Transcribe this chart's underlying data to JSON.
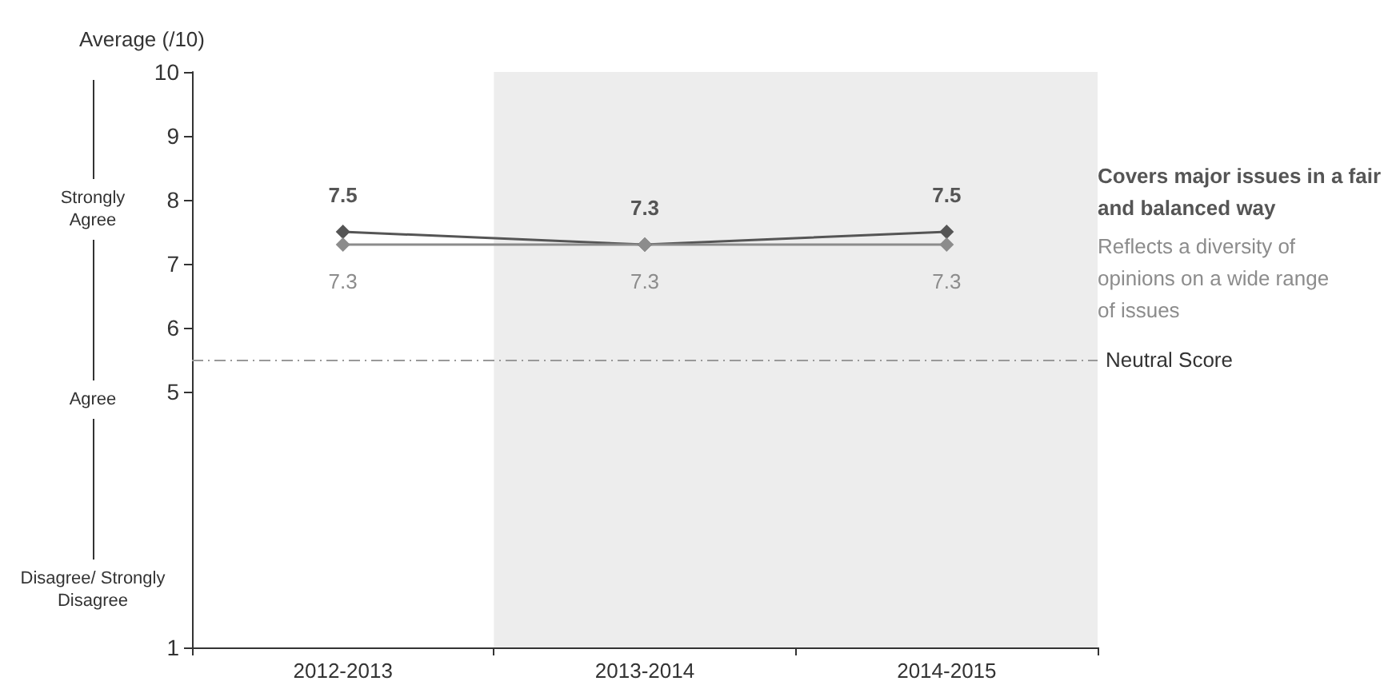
{
  "chart_data": {
    "type": "line",
    "ylabel": "Average (/10)",
    "categories": [
      "2012-2013",
      "2013-2014",
      "2014-2015"
    ],
    "series": [
      {
        "name": "Covers major issues in a fair and balanced way",
        "color": "#555555",
        "values": [
          7.5,
          7.3,
          7.5
        ]
      },
      {
        "name": "Reflects a diversity of opinions on a wide range of issues",
        "color": "#8c8c8c",
        "values": [
          7.3,
          7.3,
          7.3
        ]
      }
    ],
    "ylim": [
      1,
      10
    ],
    "yticks": [
      1,
      5,
      6,
      7,
      8,
      9,
      10
    ],
    "ref_lines": [
      {
        "axis": "y",
        "value": 5.5,
        "label": "Neutral Score",
        "color": "#999999",
        "line_style": "dashed"
      }
    ],
    "bands": [
      {
        "axis": "x",
        "from": "2013-2014",
        "to": "2014-2015",
        "color": "#ededed"
      }
    ],
    "annotations": [
      "Strongly Agree",
      "Agree",
      "Disagree/ Strongly Disagree"
    ],
    "marker": "diamond",
    "data_labels": true,
    "legend": "right",
    "grid": false
  }
}
